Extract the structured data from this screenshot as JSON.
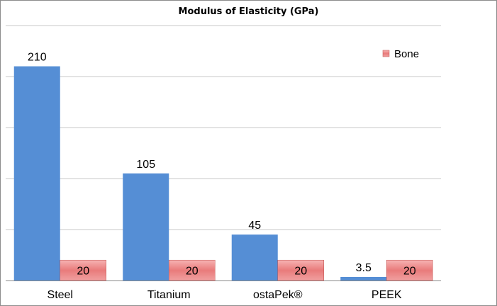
{
  "chart_data": {
    "type": "bar",
    "title": "Modulus of Elasticity (GPa)",
    "categories": [
      "Steel",
      "Titanium",
      "ostaPek®",
      "PEEK"
    ],
    "series": [
      {
        "values": [
          210,
          105,
          45,
          3.5
        ],
        "labels": [
          "210",
          "105",
          "45",
          "3.5"
        ],
        "color": "#558ed5"
      },
      {
        "name": "Bone",
        "values": [
          20,
          20,
          20,
          20
        ],
        "labels": [
          "20",
          "20",
          "20",
          "20"
        ],
        "color": "#e46c6c"
      }
    ],
    "ylim": [
      0,
      250
    ],
    "grid": true,
    "legend": "top-right",
    "xlabel": "",
    "ylabel": ""
  }
}
